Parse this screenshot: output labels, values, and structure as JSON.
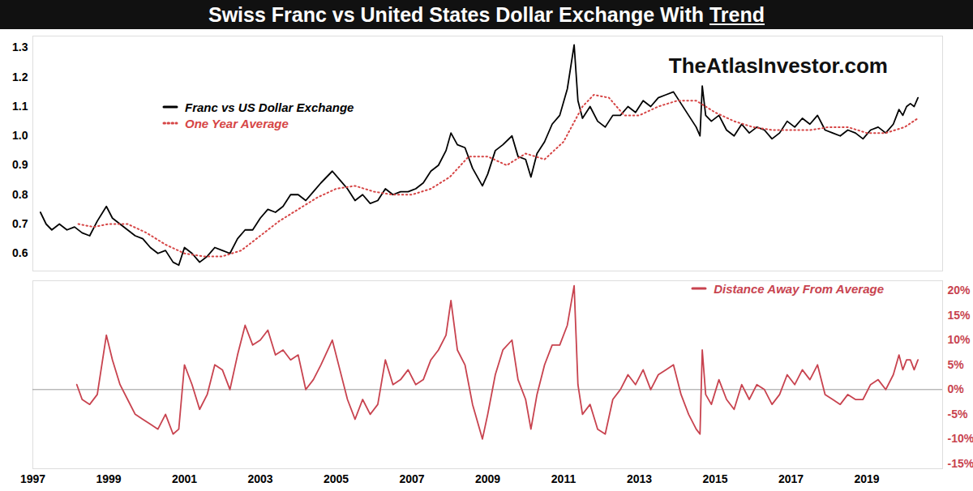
{
  "chart_data": [
    {
      "type": "line",
      "title": "Swiss Franc vs United States Dollar Exchange With Trend",
      "annotations": [
        "TheAtlasInvestor.com"
      ],
      "xlim": [
        1997,
        2021
      ],
      "ylim": [
        0.54,
        1.34
      ],
      "yticks": [
        0.6,
        0.7,
        0.8,
        0.9,
        {
          "value": 1,
          "label": "1.0"
        },
        1.1,
        1.2,
        1.3
      ],
      "tick_labels": "y",
      "legend": "top-left",
      "series": [
        {
          "name": "Franc vs US Dollar Exchange",
          "color": "#000000",
          "line_style": "solid",
          "x": [
            1997.2,
            1997.35,
            1997.5,
            1997.7,
            1997.9,
            1998.1,
            1998.3,
            1998.5,
            1998.7,
            1998.94,
            1999.1,
            1999.3,
            1999.5,
            1999.7,
            1999.9,
            2000.1,
            2000.3,
            2000.5,
            2000.7,
            2000.85,
            2001.0,
            2001.2,
            2001.4,
            2001.6,
            2001.8,
            2002.0,
            2002.2,
            2002.4,
            2002.6,
            2002.8,
            2003.0,
            2003.2,
            2003.4,
            2003.6,
            2003.8,
            2004.0,
            2004.2,
            2004.4,
            2004.6,
            2004.9,
            2005.1,
            2005.3,
            2005.5,
            2005.7,
            2005.9,
            2006.1,
            2006.3,
            2006.5,
            2006.7,
            2006.9,
            2007.1,
            2007.3,
            2007.5,
            2007.7,
            2007.9,
            2008.03,
            2008.2,
            2008.4,
            2008.6,
            2008.86,
            2009.0,
            2009.2,
            2009.4,
            2009.64,
            2009.8,
            2010.0,
            2010.14,
            2010.3,
            2010.5,
            2010.7,
            2010.9,
            2011.1,
            2011.28,
            2011.38,
            2011.5,
            2011.7,
            2011.9,
            2012.1,
            2012.3,
            2012.5,
            2012.7,
            2012.9,
            2013.1,
            2013.3,
            2013.5,
            2013.7,
            2013.9,
            2014.1,
            2014.3,
            2014.5,
            2014.6,
            2014.66,
            2014.75,
            2014.9,
            2015.1,
            2015.3,
            2015.5,
            2015.7,
            2015.9,
            2016.1,
            2016.3,
            2016.5,
            2016.7,
            2016.9,
            2017.1,
            2017.3,
            2017.5,
            2017.7,
            2017.9,
            2018.1,
            2018.3,
            2018.5,
            2018.7,
            2018.9,
            2019.1,
            2019.3,
            2019.5,
            2019.7,
            2019.85,
            2019.95,
            2020.05,
            2020.15,
            2020.25,
            2020.35
          ],
          "values": [
            0.74,
            0.7,
            0.68,
            0.7,
            0.68,
            0.69,
            0.67,
            0.66,
            0.71,
            0.76,
            0.72,
            0.7,
            0.68,
            0.66,
            0.65,
            0.62,
            0.6,
            0.61,
            0.57,
            0.56,
            0.62,
            0.6,
            0.57,
            0.59,
            0.62,
            0.61,
            0.6,
            0.65,
            0.68,
            0.68,
            0.72,
            0.75,
            0.74,
            0.76,
            0.8,
            0.8,
            0.78,
            0.81,
            0.84,
            0.88,
            0.85,
            0.82,
            0.78,
            0.8,
            0.77,
            0.78,
            0.82,
            0.8,
            0.81,
            0.81,
            0.82,
            0.84,
            0.88,
            0.9,
            0.95,
            1.01,
            0.97,
            0.96,
            0.89,
            0.83,
            0.87,
            0.95,
            0.97,
            1.0,
            0.93,
            0.92,
            0.86,
            0.94,
            0.98,
            1.04,
            1.07,
            1.16,
            1.31,
            1.12,
            1.06,
            1.1,
            1.05,
            1.03,
            1.07,
            1.07,
            1.1,
            1.08,
            1.12,
            1.1,
            1.13,
            1.14,
            1.15,
            1.11,
            1.07,
            1.03,
            1.0,
            1.17,
            1.07,
            1.05,
            1.07,
            1.02,
            1.0,
            1.04,
            1.01,
            1.03,
            1.02,
            0.99,
            1.01,
            1.05,
            1.03,
            1.06,
            1.04,
            1.07,
            1.02,
            1.01,
            1.0,
            1.02,
            1.01,
            0.99,
            1.02,
            1.03,
            1.01,
            1.04,
            1.09,
            1.07,
            1.1,
            1.11,
            1.1,
            1.13
          ]
        },
        {
          "name": "One Year Average",
          "color": "#d64545",
          "line_style": "dotted",
          "x": [
            1998.2,
            1998.6,
            1999.0,
            1999.5,
            2000.0,
            2000.5,
            2001.0,
            2001.5,
            2002.0,
            2002.5,
            2003.0,
            2003.5,
            2004.0,
            2004.5,
            2005.0,
            2005.5,
            2006.0,
            2006.5,
            2007.0,
            2007.5,
            2008.0,
            2008.5,
            2009.0,
            2009.5,
            2010.0,
            2010.5,
            2011.0,
            2011.5,
            2011.8,
            2012.2,
            2012.6,
            2013.0,
            2013.5,
            2014.0,
            2014.5,
            2015.0,
            2015.5,
            2016.0,
            2016.5,
            2017.0,
            2017.5,
            2018.0,
            2018.5,
            2019.0,
            2019.5,
            2020.0,
            2020.35
          ],
          "values": [
            0.7,
            0.69,
            0.7,
            0.7,
            0.67,
            0.63,
            0.6,
            0.59,
            0.59,
            0.61,
            0.66,
            0.71,
            0.75,
            0.79,
            0.82,
            0.83,
            0.81,
            0.8,
            0.8,
            0.82,
            0.86,
            0.93,
            0.93,
            0.9,
            0.94,
            0.92,
            0.98,
            1.1,
            1.14,
            1.13,
            1.07,
            1.07,
            1.1,
            1.12,
            1.12,
            1.08,
            1.05,
            1.03,
            1.02,
            1.02,
            1.02,
            1.03,
            1.03,
            1.01,
            1.01,
            1.03,
            1.06
          ]
        }
      ]
    },
    {
      "type": "line",
      "xlim": [
        1997,
        2021
      ],
      "xticks": [
        1997,
        1999,
        2001,
        2003,
        2005,
        2007,
        2009,
        2011,
        2013,
        2015,
        2017,
        2019
      ],
      "y2lim": [
        -16,
        22
      ],
      "y2ticks": [
        {
          "value": -15,
          "label": "-15%"
        },
        {
          "value": -10,
          "label": "-10%"
        },
        {
          "value": -5,
          "label": "-5%"
        },
        {
          "value": 0,
          "label": "0%"
        },
        {
          "value": 5,
          "label": "5%"
        },
        {
          "value": 10,
          "label": "10%"
        },
        {
          "value": 15,
          "label": "15%"
        },
        {
          "value": 20,
          "label": "20%"
        }
      ],
      "baseline": 0,
      "tick_labels": true,
      "legend": "top-right",
      "series": [
        {
          "name": "Distance Away From Average",
          "color": "#c8434f",
          "line_style": "solid",
          "axis": "y2",
          "x": [
            1998.16,
            1998.3,
            1998.5,
            1998.7,
            1998.94,
            1999.1,
            1999.3,
            1999.5,
            1999.7,
            1999.9,
            2000.1,
            2000.3,
            2000.5,
            2000.7,
            2000.85,
            2001.0,
            2001.2,
            2001.4,
            2001.6,
            2001.8,
            2002.0,
            2002.2,
            2002.4,
            2002.6,
            2002.8,
            2003.0,
            2003.2,
            2003.4,
            2003.6,
            2003.8,
            2004.0,
            2004.2,
            2004.4,
            2004.6,
            2004.9,
            2005.1,
            2005.3,
            2005.5,
            2005.7,
            2005.9,
            2006.1,
            2006.3,
            2006.5,
            2006.7,
            2006.9,
            2007.1,
            2007.3,
            2007.5,
            2007.7,
            2007.9,
            2008.03,
            2008.2,
            2008.4,
            2008.6,
            2008.86,
            2009.0,
            2009.2,
            2009.4,
            2009.64,
            2009.8,
            2010.0,
            2010.14,
            2010.3,
            2010.5,
            2010.7,
            2010.9,
            2011.1,
            2011.28,
            2011.38,
            2011.5,
            2011.7,
            2011.9,
            2012.1,
            2012.3,
            2012.5,
            2012.7,
            2012.9,
            2013.1,
            2013.3,
            2013.5,
            2013.7,
            2013.9,
            2014.1,
            2014.3,
            2014.5,
            2014.6,
            2014.66,
            2014.75,
            2014.9,
            2015.1,
            2015.3,
            2015.5,
            2015.7,
            2015.9,
            2016.1,
            2016.3,
            2016.5,
            2016.7,
            2016.9,
            2017.1,
            2017.3,
            2017.5,
            2017.7,
            2017.9,
            2018.1,
            2018.3,
            2018.5,
            2018.7,
            2018.9,
            2019.1,
            2019.3,
            2019.5,
            2019.7,
            2019.85,
            2019.95,
            2020.05,
            2020.15,
            2020.25,
            2020.35
          ],
          "values": [
            1,
            -2,
            -3,
            -1,
            11,
            6,
            1,
            -2,
            -5,
            -6,
            -7,
            -8,
            -5,
            -9,
            -8,
            5,
            1,
            -4,
            -1,
            5,
            4,
            0,
            7,
            13,
            9,
            10,
            12,
            7,
            8,
            6,
            7,
            0,
            2,
            5,
            10,
            4,
            -2,
            -6,
            -2,
            -5,
            -3,
            6,
            1,
            2,
            4,
            1,
            2,
            6,
            8,
            11,
            18,
            8,
            5,
            -3,
            -10,
            -5,
            3,
            8,
            10,
            2,
            -2,
            -8,
            -1,
            5,
            9,
            9,
            13,
            21,
            1,
            -5,
            -3,
            -8,
            -9,
            -2,
            0,
            3,
            1,
            4,
            0,
            3,
            4,
            5,
            -1,
            -5,
            -8,
            -9,
            8,
            -1,
            -3,
            2,
            -2,
            -4,
            1,
            -2,
            1,
            0,
            -3,
            -1,
            3,
            1,
            4,
            2,
            5,
            -1,
            -2,
            -3,
            -1,
            -2,
            -2,
            1,
            2,
            0,
            3,
            7,
            4,
            6,
            6,
            4,
            6
          ]
        }
      ]
    }
  ]
}
